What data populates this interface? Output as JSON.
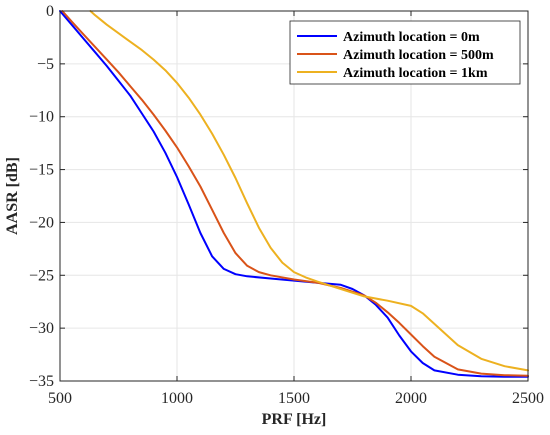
{
  "chart_data": {
    "type": "line",
    "title": "",
    "xlabel": "PRF [Hz]",
    "ylabel": "AASR [dB]",
    "xlim": [
      500,
      2500
    ],
    "ylim": [
      -35,
      0
    ],
    "xticks": [
      500,
      1000,
      1500,
      2000,
      2500
    ],
    "yticks": [
      0,
      -5,
      -10,
      -15,
      -20,
      -25,
      -30,
      -35
    ],
    "grid": true,
    "legend_position": "top-right",
    "series": [
      {
        "name": "Azimuth location = 0m",
        "color": "#0000ff",
        "x": [
          500,
          550,
          600,
          650,
          700,
          750,
          800,
          850,
          900,
          950,
          1000,
          1050,
          1100,
          1150,
          1200,
          1250,
          1300,
          1400,
          1500,
          1600,
          1700,
          1750,
          1800,
          1850,
          1900,
          1950,
          2000,
          2050,
          2100,
          2200,
          2300,
          2400,
          2500
        ],
        "y": [
          0,
          -1.3,
          -2.6,
          -3.9,
          -5.2,
          -6.6,
          -8.0,
          -9.7,
          -11.4,
          -13.4,
          -15.7,
          -18.3,
          -21.0,
          -23.2,
          -24.4,
          -24.9,
          -25.1,
          -25.3,
          -25.5,
          -25.7,
          -25.9,
          -26.3,
          -26.9,
          -27.8,
          -29.0,
          -30.7,
          -32.2,
          -33.3,
          -34.0,
          -34.4,
          -34.55,
          -34.6,
          -34.6
        ]
      },
      {
        "name": "Azimuth location = 500m",
        "color": "#d95319",
        "x": [
          510,
          550,
          600,
          650,
          700,
          750,
          800,
          850,
          900,
          950,
          1000,
          1050,
          1100,
          1150,
          1200,
          1250,
          1300,
          1350,
          1400,
          1500,
          1600,
          1700,
          1800,
          1850,
          1900,
          1950,
          2000,
          2050,
          2100,
          2200,
          2300,
          2400,
          2500
        ],
        "y": [
          0,
          -1.0,
          -2.2,
          -3.4,
          -4.6,
          -5.8,
          -7.1,
          -8.4,
          -9.8,
          -11.3,
          -12.9,
          -14.7,
          -16.6,
          -18.8,
          -21.0,
          -22.9,
          -24.1,
          -24.7,
          -25.0,
          -25.4,
          -25.7,
          -26.2,
          -26.9,
          -27.6,
          -28.5,
          -29.5,
          -30.6,
          -31.7,
          -32.7,
          -33.9,
          -34.3,
          -34.45,
          -34.5
        ]
      },
      {
        "name": "Azimuth location = 1km",
        "color": "#edb120",
        "x": [
          630,
          650,
          700,
          750,
          800,
          850,
          900,
          950,
          1000,
          1050,
          1100,
          1150,
          1200,
          1250,
          1300,
          1350,
          1400,
          1450,
          1500,
          1550,
          1600,
          1700,
          1800,
          1900,
          2000,
          2050,
          2100,
          2150,
          2200,
          2300,
          2400,
          2500
        ],
        "y": [
          0,
          -0.4,
          -1.3,
          -2.1,
          -2.9,
          -3.7,
          -4.6,
          -5.6,
          -6.8,
          -8.2,
          -9.8,
          -11.6,
          -13.6,
          -15.8,
          -18.2,
          -20.5,
          -22.4,
          -23.8,
          -24.7,
          -25.2,
          -25.6,
          -26.3,
          -27.0,
          -27.4,
          -27.9,
          -28.6,
          -29.6,
          -30.6,
          -31.6,
          -32.9,
          -33.6,
          -34.0
        ]
      }
    ]
  }
}
